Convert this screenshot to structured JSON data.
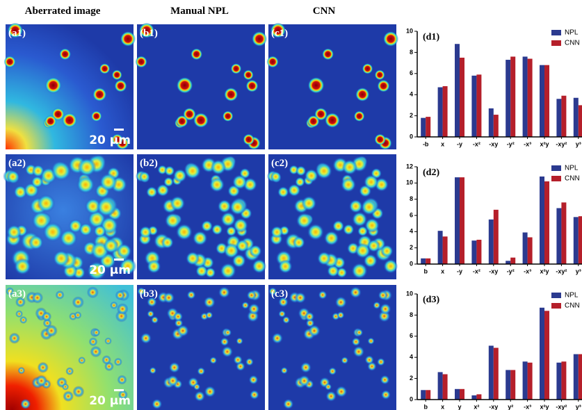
{
  "headers": [
    "Aberrated image",
    "Manual NPL",
    "CNN"
  ],
  "images": [
    {
      "label": "(a1)"
    },
    {
      "label": "(b1)"
    },
    {
      "label": "(c1)"
    },
    {
      "label": "(a2)"
    },
    {
      "label": "(b2)"
    },
    {
      "label": "(c2)"
    },
    {
      "label": "(a3)"
    },
    {
      "label": "(b3)"
    },
    {
      "label": "(c3)"
    }
  ],
  "scale_bars": [
    "20 μm",
    "20 μm",
    "20 μm"
  ],
  "chart_data": [
    {
      "type": "bar",
      "title": "(d1)",
      "categories": [
        "-b",
        "x",
        "-y",
        "-x²",
        "-xy",
        "-y²",
        "-x³",
        "x²y",
        "-xy²",
        "y³"
      ],
      "series": [
        {
          "name": "NPL",
          "color": "#2b3a8f",
          "values": [
            1.8,
            4.7,
            8.8,
            5.8,
            2.7,
            7.3,
            7.6,
            6.8,
            3.6,
            3.7
          ]
        },
        {
          "name": "CNN",
          "color": "#b51f2a",
          "values": [
            1.9,
            4.8,
            7.5,
            5.9,
            2.1,
            7.6,
            7.4,
            6.8,
            3.9,
            3.0
          ]
        }
      ],
      "ylim": [
        0,
        10
      ],
      "yticks": [
        0,
        2,
        4,
        6,
        8,
        10
      ],
      "legend": "top-right"
    },
    {
      "type": "bar",
      "title": "(d2)",
      "categories": [
        "b",
        "x",
        "-y",
        "-x²",
        "-xy",
        "-y²",
        "-x³",
        "x²y",
        "-xy²",
        "y³"
      ],
      "series": [
        {
          "name": "NPL",
          "color": "#2b3a8f",
          "values": [
            0.7,
            4.1,
            10.7,
            2.9,
            5.5,
            0.4,
            3.9,
            10.8,
            6.9,
            5.8
          ]
        },
        {
          "name": "CNN",
          "color": "#b51f2a",
          "values": [
            0.7,
            3.4,
            10.7,
            3.0,
            6.7,
            0.8,
            3.3,
            10.2,
            7.6,
            5.9
          ]
        }
      ],
      "ylim": [
        0,
        12
      ],
      "yticks": [
        0,
        2,
        4,
        6,
        8,
        10,
        12
      ],
      "legend": "top-right"
    },
    {
      "type": "bar",
      "title": "(d3)",
      "categories": [
        "b",
        "x",
        "y",
        "x²",
        "-xy",
        "y²",
        "-x³",
        "x²y",
        "-xy²",
        "y³"
      ],
      "series": [
        {
          "name": "NPL",
          "color": "#2b3a8f",
          "values": [
            0.9,
            2.6,
            1.0,
            0.4,
            5.1,
            2.8,
            3.6,
            8.7,
            3.5,
            4.3
          ]
        },
        {
          "name": "CNN",
          "color": "#b51f2a",
          "values": [
            0.9,
            2.4,
            1.0,
            0.5,
            4.9,
            2.8,
            3.5,
            8.4,
            3.6,
            4.3
          ]
        }
      ],
      "ylim": [
        0,
        10
      ],
      "yticks": [
        0,
        2,
        4,
        6,
        8,
        10
      ],
      "legend": "top-right"
    }
  ]
}
